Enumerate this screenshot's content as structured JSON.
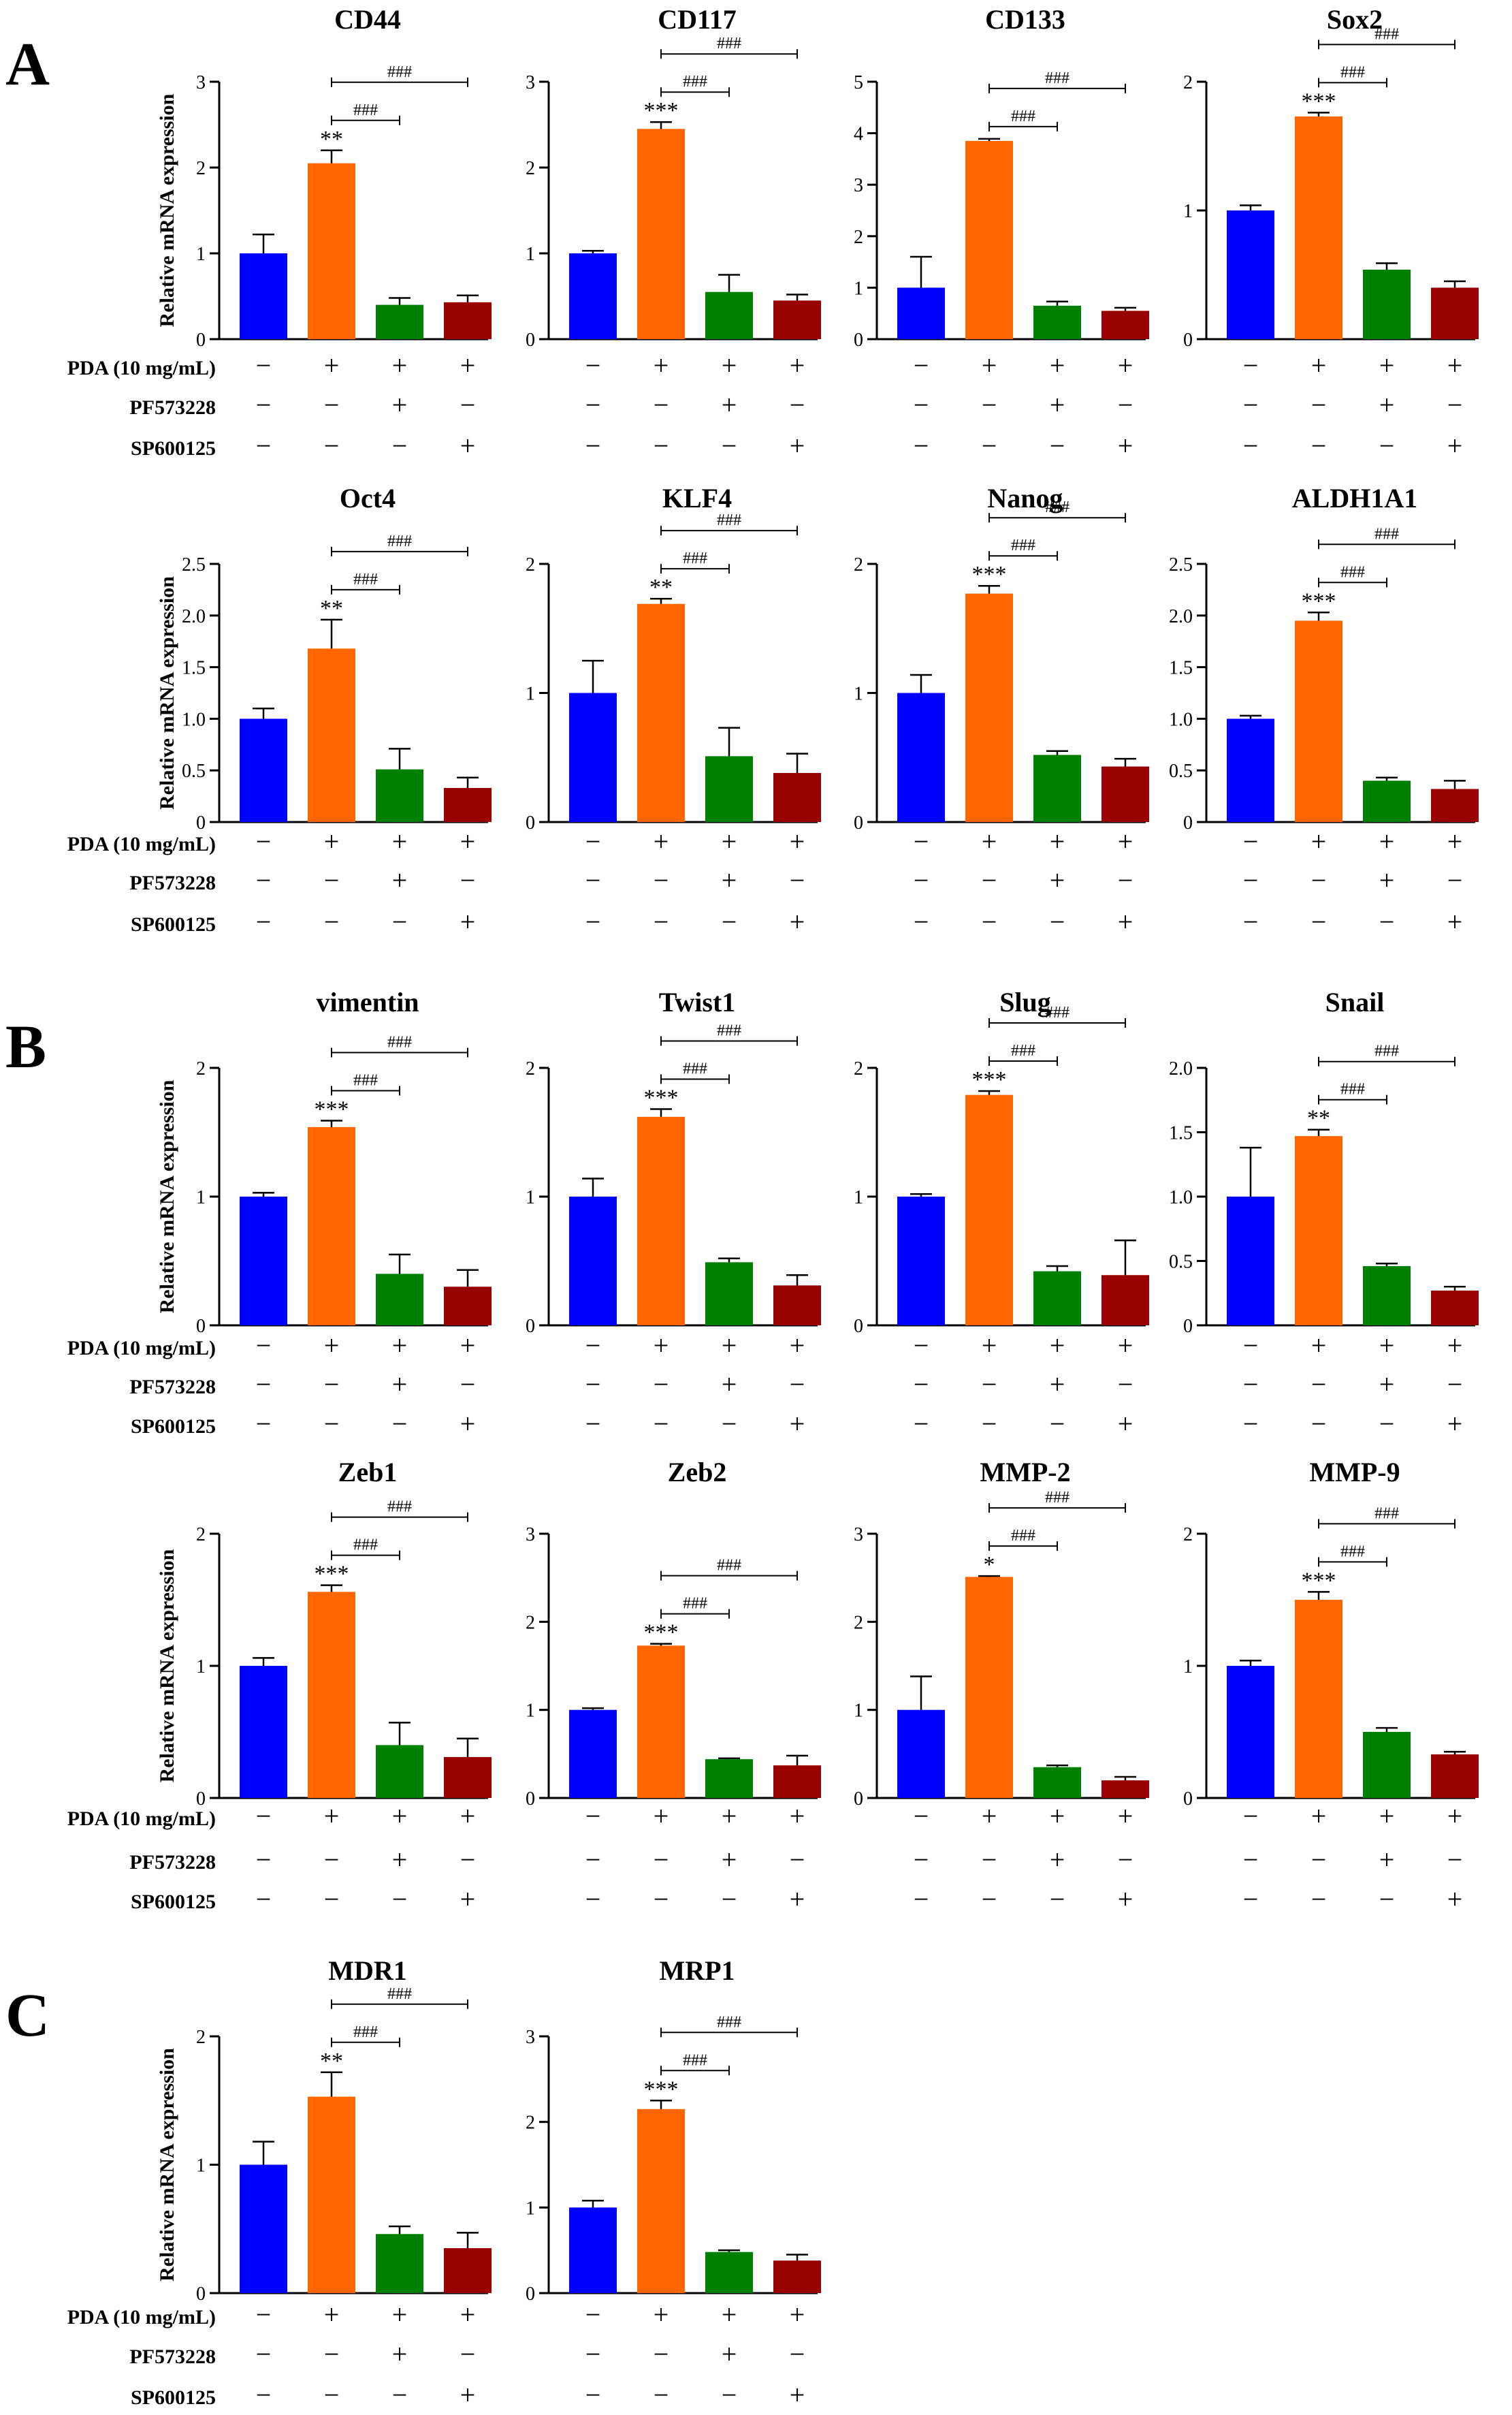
{
  "conditions": {
    "labels": [
      "PDA (10 mg/mL)",
      "PF573228",
      "SP600125"
    ],
    "signs": [
      [
        "−",
        "+",
        "+",
        "+"
      ],
      [
        "−",
        "−",
        "+",
        "−"
      ],
      [
        "−",
        "−",
        "−",
        "+"
      ]
    ]
  },
  "colors": [
    "#0000ff",
    "#ff6600",
    "#008000",
    "#990000"
  ],
  "ylabel": "Relative mRNA expression",
  "panels": [
    {
      "letter": "A",
      "row": 0
    },
    {
      "letter": "B",
      "row": 2
    },
    {
      "letter": "C",
      "row": 4
    }
  ],
  "chart_data": [
    {
      "type": "bar",
      "title": "CD44",
      "categories": [
        "Control",
        "PDA",
        "PDA+PF573228",
        "PDA+SP600125"
      ],
      "values": [
        1.0,
        2.05,
        0.4,
        0.43
      ],
      "errors": [
        0.22,
        0.15,
        0.08,
        0.08
      ],
      "ylim": [
        0,
        3
      ],
      "ticks": [
        "0",
        "1",
        "2",
        "3"
      ],
      "stars": "**",
      "hash": [
        "###",
        "###"
      ]
    },
    {
      "type": "bar",
      "title": "CD117",
      "categories": [
        "Control",
        "PDA",
        "PDA+PF573228",
        "PDA+SP600125"
      ],
      "values": [
        1.0,
        2.45,
        0.55,
        0.45
      ],
      "errors": [
        0.03,
        0.08,
        0.2,
        0.07
      ],
      "ylim": [
        0,
        3
      ],
      "ticks": [
        "0",
        "1",
        "2",
        "3"
      ],
      "stars": "***",
      "hash": [
        "###",
        "###"
      ]
    },
    {
      "type": "bar",
      "title": "CD133",
      "categories": [
        "Control",
        "PDA",
        "PDA+PF573228",
        "PDA+SP600125"
      ],
      "values": [
        1.0,
        3.85,
        0.65,
        0.55
      ],
      "errors": [
        0.6,
        0.04,
        0.08,
        0.06
      ],
      "ylim": [
        0,
        5
      ],
      "ticks": [
        "0",
        "1",
        "2",
        "3",
        "4",
        "5"
      ],
      "stars": "",
      "hash": [
        "###",
        "###"
      ]
    },
    {
      "type": "bar",
      "title": "Sox2",
      "categories": [
        "Control",
        "PDA",
        "PDA+PF573228",
        "PDA+SP600125"
      ],
      "values": [
        1.0,
        1.73,
        0.54,
        0.4
      ],
      "errors": [
        0.04,
        0.03,
        0.05,
        0.05
      ],
      "ylim": [
        0,
        2
      ],
      "ticks": [
        "0",
        "1",
        "2"
      ],
      "stars": "***",
      "hash": [
        "###",
        "###"
      ]
    },
    {
      "type": "bar",
      "title": "Oct4",
      "categories": [
        "Control",
        "PDA",
        "PDA+PF573228",
        "PDA+SP600125"
      ],
      "values": [
        1.0,
        1.68,
        0.51,
        0.33
      ],
      "errors": [
        0.1,
        0.28,
        0.2,
        0.1
      ],
      "ylim": [
        0,
        2.5
      ],
      "ticks": [
        "0",
        "0.5",
        "1.0",
        "1.5",
        "2.0",
        "2.5"
      ],
      "stars": "**",
      "hash": [
        "###",
        "###"
      ]
    },
    {
      "type": "bar",
      "title": "KLF4",
      "categories": [
        "Control",
        "PDA",
        "PDA+PF573228",
        "PDA+SP600125"
      ],
      "values": [
        1.0,
        1.69,
        0.51,
        0.38
      ],
      "errors": [
        0.25,
        0.04,
        0.22,
        0.15
      ],
      "ylim": [
        0,
        2
      ],
      "ticks": [
        "0",
        "1",
        "2"
      ],
      "stars": "**",
      "hash": [
        "###",
        "###"
      ]
    },
    {
      "type": "bar",
      "title": "Nanog",
      "categories": [
        "Control",
        "PDA",
        "PDA+PF573228",
        "PDA+SP600125"
      ],
      "values": [
        1.0,
        1.77,
        0.52,
        0.43
      ],
      "errors": [
        0.14,
        0.06,
        0.03,
        0.06
      ],
      "ylim": [
        0,
        2
      ],
      "ticks": [
        "0",
        "1",
        "2"
      ],
      "stars": "***",
      "hash": [
        "###",
        "###"
      ]
    },
    {
      "type": "bar",
      "title": "ALDH1A1",
      "categories": [
        "Control",
        "PDA",
        "PDA+PF573228",
        "PDA+SP600125"
      ],
      "values": [
        1.0,
        1.95,
        0.4,
        0.32
      ],
      "errors": [
        0.03,
        0.08,
        0.03,
        0.08
      ],
      "ylim": [
        0,
        2.5
      ],
      "ticks": [
        "0",
        "0.5",
        "1.0",
        "1.5",
        "2.0",
        "2.5"
      ],
      "stars": "***",
      "hash": [
        "###",
        "###"
      ]
    },
    {
      "type": "bar",
      "title": "vimentin",
      "categories": [
        "Control",
        "PDA",
        "PDA+PF573228",
        "PDA+SP600125"
      ],
      "values": [
        1.0,
        1.54,
        0.4,
        0.3
      ],
      "errors": [
        0.03,
        0.05,
        0.15,
        0.13
      ],
      "ylim": [
        0,
        2
      ],
      "ticks": [
        "0",
        "1",
        "2"
      ],
      "stars": "***",
      "hash": [
        "###",
        "###"
      ]
    },
    {
      "type": "bar",
      "title": "Twist1",
      "categories": [
        "Control",
        "PDA",
        "PDA+PF573228",
        "PDA+SP600125"
      ],
      "values": [
        1.0,
        1.62,
        0.49,
        0.31
      ],
      "errors": [
        0.14,
        0.06,
        0.03,
        0.08
      ],
      "ylim": [
        0,
        2
      ],
      "ticks": [
        "0",
        "1",
        "2"
      ],
      "stars": "***",
      "hash": [
        "###",
        "###"
      ]
    },
    {
      "type": "bar",
      "title": "Slug",
      "categories": [
        "Control",
        "PDA",
        "PDA+PF573228",
        "PDA+SP600125"
      ],
      "values": [
        1.0,
        1.79,
        0.42,
        0.39
      ],
      "errors": [
        0.02,
        0.03,
        0.04,
        0.27
      ],
      "ylim": [
        0,
        2
      ],
      "ticks": [
        "0",
        "1",
        "2"
      ],
      "stars": "***",
      "hash": [
        "###",
        "###"
      ]
    },
    {
      "type": "bar",
      "title": "Snail",
      "categories": [
        "Control",
        "PDA",
        "PDA+PF573228",
        "PDA+SP600125"
      ],
      "values": [
        1.0,
        1.47,
        0.46,
        0.27
      ],
      "errors": [
        0.38,
        0.05,
        0.02,
        0.03
      ],
      "ylim": [
        0,
        2
      ],
      "ticks": [
        "0",
        "0.5",
        "1.0",
        "1.5",
        "2.0"
      ],
      "stars": "**",
      "hash": [
        "###",
        "###"
      ]
    },
    {
      "type": "bar",
      "title": "Zeb1",
      "categories": [
        "Control",
        "PDA",
        "PDA+PF573228",
        "PDA+SP600125"
      ],
      "values": [
        1.0,
        1.56,
        0.4,
        0.31
      ],
      "errors": [
        0.06,
        0.05,
        0.17,
        0.14
      ],
      "ylim": [
        0,
        2
      ],
      "ticks": [
        "0",
        "1",
        "2"
      ],
      "stars": "***",
      "hash": [
        "###",
        "###"
      ]
    },
    {
      "type": "bar",
      "title": "Zeb2",
      "categories": [
        "Control",
        "PDA",
        "PDA+PF573228",
        "PDA+SP600125"
      ],
      "values": [
        1.0,
        1.73,
        0.44,
        0.37
      ],
      "errors": [
        0.02,
        0.02,
        0.01,
        0.11
      ],
      "ylim": [
        0,
        3
      ],
      "ticks": [
        "0",
        "1",
        "2",
        "3"
      ],
      "stars": "***",
      "hash": [
        "###",
        "###"
      ]
    },
    {
      "type": "bar",
      "title": "MMP-2",
      "categories": [
        "Control",
        "PDA",
        "PDA+PF573228",
        "PDA+SP600125"
      ],
      "values": [
        1.0,
        2.51,
        0.35,
        0.2
      ],
      "errors": [
        0.38,
        0.01,
        0.02,
        0.04
      ],
      "ylim": [
        0,
        3
      ],
      "ticks": [
        "0",
        "1",
        "2",
        "3"
      ],
      "stars": "*",
      "hash": [
        "###",
        "###"
      ]
    },
    {
      "type": "bar",
      "title": "MMP-9",
      "categories": [
        "Control",
        "PDA",
        "PDA+PF573228",
        "PDA+SP600125"
      ],
      "values": [
        1.0,
        1.5,
        0.5,
        0.33
      ],
      "errors": [
        0.04,
        0.06,
        0.03,
        0.02
      ],
      "ylim": [
        0,
        2
      ],
      "ticks": [
        "0",
        "1",
        "2"
      ],
      "stars": "***",
      "hash": [
        "###",
        "###"
      ]
    },
    {
      "type": "bar",
      "title": "MDR1",
      "categories": [
        "Control",
        "PDA",
        "PDA+PF573228",
        "PDA+SP600125"
      ],
      "values": [
        1.0,
        1.53,
        0.46,
        0.35
      ],
      "errors": [
        0.18,
        0.19,
        0.06,
        0.12
      ],
      "ylim": [
        0,
        2
      ],
      "ticks": [
        "0",
        "1",
        "2"
      ],
      "stars": "**",
      "hash": [
        "###",
        "###"
      ]
    },
    {
      "type": "bar",
      "title": "MRP1",
      "categories": [
        "Control",
        "PDA",
        "PDA+PF573228",
        "PDA+SP600125"
      ],
      "values": [
        1.0,
        2.15,
        0.48,
        0.38
      ],
      "errors": [
        0.08,
        0.1,
        0.02,
        0.07
      ],
      "ylim": [
        0,
        3
      ],
      "ticks": [
        "0",
        "1",
        "2",
        "3"
      ],
      "stars": "***",
      "hash": [
        "###",
        "###"
      ]
    }
  ]
}
